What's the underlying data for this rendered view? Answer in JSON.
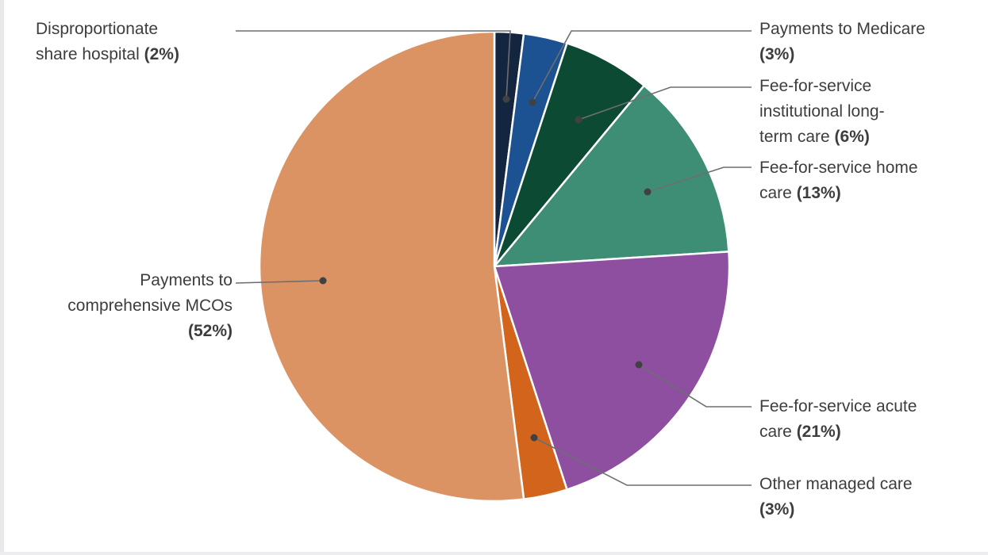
{
  "chart_data": {
    "type": "pie",
    "title": "",
    "direction": "clockwise",
    "start_angle_deg": 0,
    "categories": [
      "Disproportionate share hospital",
      "Payments to Medicare",
      "Fee-for-service institutional long-term care",
      "Fee-for-service home care",
      "Fee-for-service acute care",
      "Other managed care",
      "Payments to comprehensive MCOs"
    ],
    "values": [
      2,
      3,
      6,
      13,
      21,
      3,
      52
    ],
    "slices": [
      {
        "label": "Disproportionate share hospital",
        "value": 2,
        "color": "#14263f",
        "label_lines": [
          "Disproportionate"
        ],
        "pct_prefix": "share hospital ",
        "pct_label": "(2%)",
        "callout": {
          "dot": [
            638,
            125
          ],
          "elbow": [
            643,
            39
          ],
          "end": [
            297,
            39
          ]
        }
      },
      {
        "label": "Payments to Medicare",
        "value": 3,
        "color": "#1c5292",
        "label_lines": [
          "Payments to Medicare"
        ],
        "pct_prefix": "",
        "pct_label": "(3%)",
        "callout": {
          "dot": [
            671,
            129
          ],
          "elbow": [
            720,
            39
          ],
          "end": [
            947,
            39
          ]
        }
      },
      {
        "label": "Fee-for-service institutional long-term care",
        "value": 6,
        "color": "#0d4a33",
        "label_lines": [
          "Fee-for-service",
          "institutional long-"
        ],
        "pct_prefix": "term care ",
        "pct_label": "(6%)",
        "callout": {
          "dot": [
            729,
            151
          ],
          "elbow": [
            845,
            110
          ],
          "end": [
            947,
            110
          ]
        }
      },
      {
        "label": "Fee-for-service home care",
        "value": 13,
        "color": "#3e8e75",
        "label_lines": [
          "Fee-for-service home"
        ],
        "pct_prefix": "care ",
        "pct_label": "(13%)",
        "callout": {
          "dot": [
            816,
            242
          ],
          "elbow": [
            912,
            211
          ],
          "end": [
            947,
            211
          ]
        }
      },
      {
        "label": "Fee-for-service acute care",
        "value": 21,
        "color": "#8f4fa0",
        "label_lines": [
          "Fee-for-service acute"
        ],
        "pct_prefix": "care ",
        "pct_label": "(21%)",
        "callout": {
          "dot": [
            805,
            460
          ],
          "elbow": [
            890,
            513
          ],
          "end": [
            947,
            513
          ]
        }
      },
      {
        "label": "Other managed care",
        "value": 3,
        "color": "#d2641c",
        "label_lines": [
          "Other managed care"
        ],
        "pct_prefix": "",
        "pct_label": "(3%)",
        "callout": {
          "dot": [
            673,
            552
          ],
          "elbow": [
            790,
            612
          ],
          "end": [
            947,
            612
          ]
        }
      },
      {
        "label": "Payments to comprehensive MCOs",
        "value": 52,
        "color": "#dc9364",
        "label_lines": [
          "Payments to",
          "comprehensive MCOs"
        ],
        "pct_prefix": "",
        "pct_label": "(52%)",
        "callout": {
          "dot": [
            407,
            354
          ],
          "elbow": null,
          "end": [
            297,
            357
          ]
        }
      }
    ],
    "layout": {
      "center": [
        623,
        336
      ],
      "radius": 296,
      "slice_stroke": "#ffffff",
      "slice_stroke_width": 2.5,
      "leader_color": "#6d6e71",
      "leader_width": 1.6,
      "dot_color": "#414042",
      "dot_radius": 4.5,
      "legend_position": "callouts",
      "grid": false
    }
  }
}
